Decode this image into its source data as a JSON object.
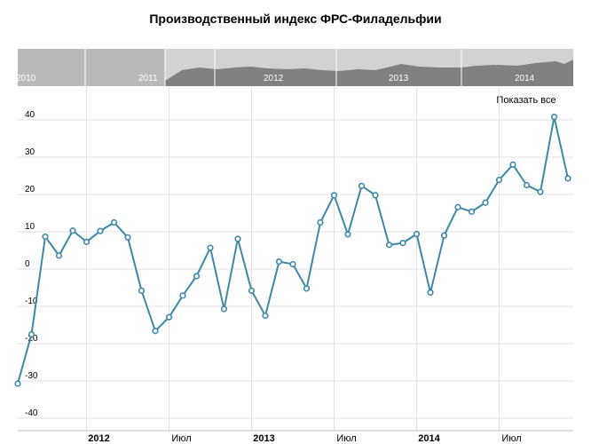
{
  "title": "Производственный индекс ФРС-Филадельфии",
  "show_all_label": "Показать все",
  "colors": {
    "line": "#3d87a8",
    "grid": "#e0e0e0",
    "navigator_selected": "#b9b9b9",
    "navigator_unselected": "#d2d2d2",
    "navigator_area": "#808080"
  },
  "navigator": {
    "year_labels": [
      "2010",
      "2011",
      "2012",
      "2013",
      "2014"
    ]
  },
  "chart_data": {
    "type": "line",
    "title": "Производственный индекс ФРС-Филадельфии",
    "xlabel": "",
    "ylabel": "",
    "ylim": [
      -40,
      45
    ],
    "yticks": [
      -40,
      -30,
      -20,
      -10,
      0,
      10,
      20,
      30,
      40
    ],
    "xticks": [
      {
        "label": "2012",
        "x": "2012-01",
        "bold": true
      },
      {
        "label": "Июл",
        "x": "2012-07",
        "bold": false
      },
      {
        "label": "2013",
        "x": "2013-01",
        "bold": true
      },
      {
        "label": "Июл",
        "x": "2013-07",
        "bold": false
      },
      {
        "label": "2014",
        "x": "2014-01",
        "bold": true
      },
      {
        "label": "Июл",
        "x": "2014-07",
        "bold": false
      }
    ],
    "grid": true,
    "legend": "none",
    "series": [
      {
        "x": [
          "2011-08",
          "2011-09",
          "2011-10",
          "2011-11",
          "2011-12",
          "2012-01",
          "2012-02",
          "2012-03",
          "2012-04",
          "2012-05",
          "2012-06",
          "2012-07",
          "2012-08",
          "2012-09",
          "2012-10",
          "2012-11",
          "2012-12",
          "2013-01",
          "2013-02",
          "2013-03",
          "2013-04",
          "2013-05",
          "2013-06",
          "2013-07",
          "2013-08",
          "2013-09",
          "2013-10",
          "2013-11",
          "2013-12",
          "2014-01",
          "2014-02",
          "2014-03",
          "2014-04",
          "2014-05",
          "2014-06",
          "2014-07",
          "2014-08",
          "2014-09",
          "2014-10",
          "2014-11",
          "2014-12"
        ],
        "values": [
          -30.7,
          -17.5,
          8.7,
          3.6,
          10.3,
          7.3,
          10.2,
          12.5,
          8.5,
          -5.8,
          -16.6,
          -12.9,
          -7.1,
          -1.9,
          5.7,
          -10.7,
          8.1,
          -5.8,
          -12.5,
          2.0,
          1.3,
          -5.2,
          12.5,
          19.8,
          9.3,
          22.3,
          19.8,
          6.5,
          7.0,
          9.4,
          -6.3,
          9.0,
          16.6,
          15.4,
          17.8,
          23.9,
          28.0,
          22.5,
          20.7,
          40.8,
          24.3
        ]
      }
    ]
  }
}
